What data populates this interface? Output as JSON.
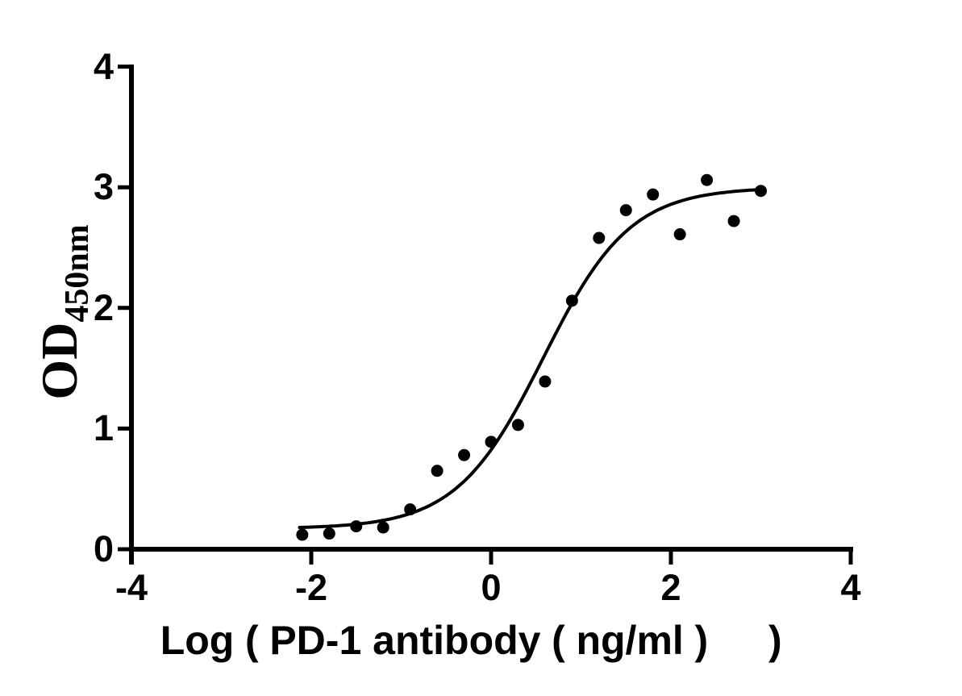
{
  "figure": {
    "background": "#ffffff",
    "ink": "#000000"
  },
  "chart_data": {
    "type": "scatter",
    "title": "",
    "xlabel": "Log（PD-1 antibody（ng/ml）　）",
    "ylabel": "OD450nm",
    "ylabel_main": "OD",
    "ylabel_sub": "450nm",
    "xlim": [
      -4,
      4
    ],
    "ylim": [
      0,
      4
    ],
    "x_ticks": [
      -4,
      -2,
      0,
      2,
      4
    ],
    "y_ticks": [
      0,
      1,
      2,
      3,
      4
    ],
    "grid": false,
    "legend": "none",
    "marker": "filled-circle",
    "marker_color": "#000000",
    "line_color": "#000000",
    "points": {
      "x": [
        -2.1,
        -1.8,
        -1.5,
        -1.2,
        -0.9,
        -0.6,
        -0.3,
        0.0,
        0.3,
        0.6,
        0.9,
        1.2,
        1.5,
        1.8,
        2.1,
        2.4,
        2.7,
        3.0
      ],
      "y": [
        0.12,
        0.13,
        0.19,
        0.18,
        0.33,
        0.65,
        0.78,
        0.89,
        1.03,
        1.39,
        2.06,
        2.58,
        2.81,
        2.94,
        2.61,
        3.06,
        2.72,
        2.97
      ]
    },
    "fit_curve": {
      "model": "4PL-sigmoid",
      "bottom": 0.17,
      "top": 3.0,
      "logEC50": 0.58,
      "hill": 0.9,
      "x_start": -2.13,
      "x_end": 3.01
    }
  }
}
